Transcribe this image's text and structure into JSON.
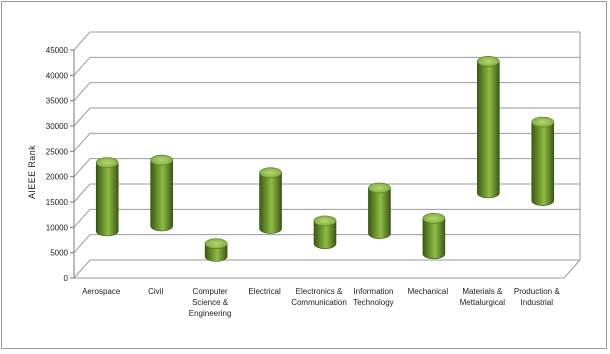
{
  "chart_data": {
    "type": "bar",
    "subtype": "floating-range-cylinder-3d",
    "title": "",
    "xlabel": "",
    "ylabel": "AIEEE Rank",
    "ylim": [
      0,
      45000
    ],
    "y_ticks": [
      "0",
      "5000",
      "10000",
      "15000",
      "20000",
      "25000",
      "30000",
      "35000",
      "40000",
      "45000"
    ],
    "grid": true,
    "legend": "none",
    "categories": [
      "Aerospace",
      "Civil",
      "Computer Science & Engineering",
      "Electrical",
      "Electronics & Communication",
      "Information Technology",
      "Mechanical",
      "Materials & Mettalurgical",
      "Production & Industrial"
    ],
    "category_lines": [
      [
        "Aerospace"
      ],
      [
        "Civil"
      ],
      [
        "Computer",
        "Science &",
        "Engineering"
      ],
      [
        "Electrical"
      ],
      [
        "Electronics &",
        "Communication"
      ],
      [
        "Information",
        "Technology"
      ],
      [
        "Mechanical"
      ],
      [
        "Materials &",
        "Mettalurgical"
      ],
      [
        "Production &",
        "Industrial"
      ]
    ],
    "series": [
      {
        "low": [
          7500,
          8500,
          2500,
          8000,
          5000,
          7000,
          3000,
          15000,
          13500
        ],
        "high": [
          21000,
          21500,
          5000,
          19000,
          9500,
          16000,
          10000,
          41000,
          29000
        ]
      }
    ],
    "colors": {
      "bar": "#6e9a2f",
      "bar_light": "#b4d870",
      "bar_dark": "#3c5a14",
      "grid": "#9a9a9a"
    }
  }
}
